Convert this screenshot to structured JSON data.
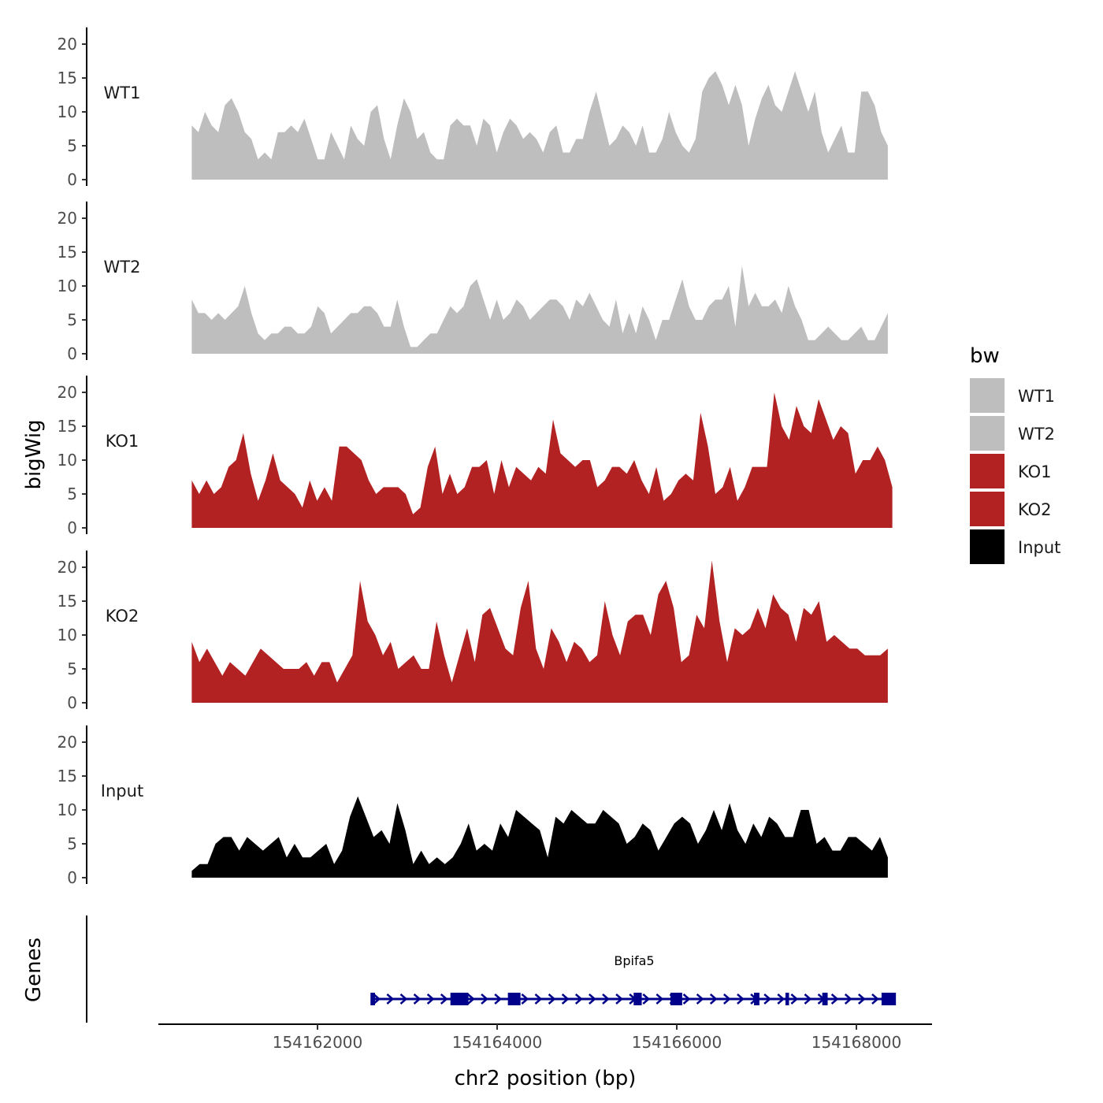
{
  "chart_data": {
    "type": "area",
    "title": "",
    "xlabel": "chr2 position (bp)",
    "ylabel": "bigWig",
    "genes_label": "Genes",
    "xlim": [
      154160600,
      154168450
    ],
    "ylim": [
      0,
      22
    ],
    "x_ticks": [
      154162000,
      154164000,
      154166000,
      154168000
    ],
    "x_tick_labels": [
      "154162000",
      "154164000",
      "154166000",
      "154168000"
    ],
    "y_ticks": [
      0,
      5,
      10,
      15,
      20
    ],
    "y_tick_labels": [
      "0",
      "5",
      "10",
      "15",
      "20"
    ],
    "legend": {
      "title": "bw",
      "position": "right",
      "entries": [
        {
          "label": "WT1",
          "color": "#bebebe"
        },
        {
          "label": "WT2",
          "color": "#bebebe"
        },
        {
          "label": "KO1",
          "color": "#b22222"
        },
        {
          "label": "KO2",
          "color": "#b22222"
        },
        {
          "label": "Input",
          "color": "#000000"
        }
      ]
    },
    "series": [
      {
        "name": "WT1",
        "color": "#bebebe",
        "x_start": 154160600,
        "x_end": 154168350,
        "values": [
          8,
          7,
          10,
          8,
          7,
          11,
          12,
          10,
          7,
          6,
          3,
          4,
          3,
          7,
          7,
          8,
          7,
          9,
          6,
          3,
          3,
          7,
          5,
          3,
          8,
          6,
          5,
          10,
          11,
          6,
          3,
          8,
          12,
          10,
          6,
          7,
          4,
          3,
          3,
          8,
          9,
          8,
          8,
          5,
          9,
          8,
          4,
          7,
          9,
          8,
          6,
          7,
          6,
          4,
          7,
          8,
          4,
          4,
          6,
          6,
          10,
          13,
          9,
          5,
          6,
          8,
          7,
          5,
          8,
          4,
          4,
          6,
          10,
          7,
          5,
          4,
          6,
          13,
          15,
          16,
          14,
          11,
          14,
          11,
          5,
          9,
          12,
          14,
          11,
          10,
          13,
          16,
          13,
          10,
          13,
          7,
          4,
          6,
          8,
          4,
          4,
          13,
          13,
          11,
          7,
          5
        ]
      },
      {
        "name": "WT2",
        "color": "#bebebe",
        "x_start": 154160600,
        "x_end": 154168350,
        "values": [
          8,
          6,
          6,
          5,
          6,
          5,
          6,
          7,
          10,
          6,
          3,
          2,
          3,
          3,
          4,
          4,
          3,
          3,
          4,
          7,
          6,
          3,
          4,
          5,
          6,
          6,
          7,
          7,
          6,
          4,
          4,
          8,
          4,
          1,
          1,
          2,
          3,
          3,
          5,
          7,
          6,
          7,
          10,
          11,
          8,
          5,
          8,
          5,
          6,
          8,
          7,
          5,
          6,
          7,
          8,
          8,
          7,
          5,
          8,
          7,
          9,
          7,
          5,
          4,
          8,
          3,
          6,
          3,
          7,
          5,
          2,
          5,
          5,
          8,
          11,
          7,
          5,
          5,
          7,
          8,
          8,
          10,
          4,
          13,
          7,
          9,
          7,
          7,
          8,
          6,
          10,
          7,
          5,
          2,
          2,
          3,
          4,
          3,
          2,
          2,
          3,
          4,
          2,
          2,
          4,
          6
        ]
      },
      {
        "name": "KO1",
        "color": "#b22222",
        "x_start": 154160600,
        "x_end": 154168400,
        "values": [
          7,
          5,
          7,
          5,
          6,
          9,
          10,
          14,
          8,
          4,
          7,
          11,
          7,
          6,
          5,
          3,
          7,
          4,
          6,
          4,
          12,
          12,
          11,
          10,
          7,
          5,
          6,
          6,
          6,
          5,
          2,
          3,
          9,
          12,
          5,
          8,
          5,
          6,
          9,
          9,
          10,
          5,
          10,
          6,
          9,
          8,
          7,
          9,
          8,
          16,
          11,
          10,
          9,
          10,
          10,
          6,
          7,
          9,
          9,
          8,
          10,
          7,
          5,
          9,
          4,
          5,
          7,
          8,
          7,
          17,
          12,
          5,
          6,
          9,
          4,
          6,
          9,
          9,
          9,
          20,
          15,
          13,
          18,
          15,
          14,
          19,
          16,
          13,
          15,
          14,
          8,
          10,
          10,
          12,
          10,
          6
        ]
      },
      {
        "name": "KO2",
        "color": "#b22222",
        "x_start": 154160600,
        "x_end": 154168350,
        "values": [
          9,
          6,
          8,
          6,
          4,
          6,
          5,
          4,
          6,
          8,
          7,
          6,
          5,
          5,
          5,
          6,
          4,
          6,
          6,
          3,
          5,
          7,
          18,
          12,
          10,
          7,
          9,
          5,
          6,
          7,
          5,
          5,
          12,
          7,
          3,
          7,
          11,
          6,
          13,
          14,
          11,
          8,
          7,
          14,
          18,
          8,
          5,
          11,
          9,
          6,
          9,
          8,
          6,
          7,
          15,
          10,
          7,
          12,
          13,
          13,
          10,
          16,
          18,
          14,
          6,
          7,
          13,
          11,
          21,
          12,
          6,
          11,
          10,
          11,
          14,
          11,
          16,
          14,
          13,
          9,
          14,
          13,
          15,
          9,
          10,
          9,
          8,
          8,
          7,
          7,
          7,
          8
        ]
      },
      {
        "name": "Input",
        "color": "#000000",
        "x_start": 154160600,
        "x_end": 154168350,
        "values": [
          1,
          2,
          2,
          5,
          6,
          6,
          4,
          6,
          5,
          4,
          5,
          6,
          3,
          5,
          3,
          3,
          4,
          5,
          2,
          4,
          9,
          12,
          9,
          6,
          7,
          5,
          11,
          7,
          2,
          4,
          2,
          3,
          2,
          3,
          5,
          8,
          4,
          5,
          4,
          8,
          6,
          10,
          9,
          8,
          7,
          3,
          9,
          8,
          10,
          9,
          8,
          8,
          10,
          9,
          8,
          5,
          6,
          8,
          7,
          4,
          6,
          8,
          9,
          8,
          5,
          7,
          10,
          7,
          11,
          7,
          5,
          8,
          6,
          9,
          8,
          6,
          6,
          10,
          10,
          5,
          6,
          4,
          4,
          6,
          6,
          5,
          4,
          6,
          3
        ]
      }
    ],
    "gene_track": {
      "gene": "Bpifa5",
      "strand": "+",
      "start": 154162600,
      "end": 154168400,
      "color": "#00008b",
      "exons": [
        {
          "start": 154162590,
          "end": 154162640
        },
        {
          "start": 154163480,
          "end": 154163680
        },
        {
          "start": 154164120,
          "end": 154164260
        },
        {
          "start": 154165520,
          "end": 154165610
        },
        {
          "start": 154165930,
          "end": 154166060
        },
        {
          "start": 154166860,
          "end": 154166920
        },
        {
          "start": 154167210,
          "end": 154167250
        },
        {
          "start": 154167620,
          "end": 154167680
        },
        {
          "start": 154168280,
          "end": 154168440
        }
      ]
    }
  }
}
